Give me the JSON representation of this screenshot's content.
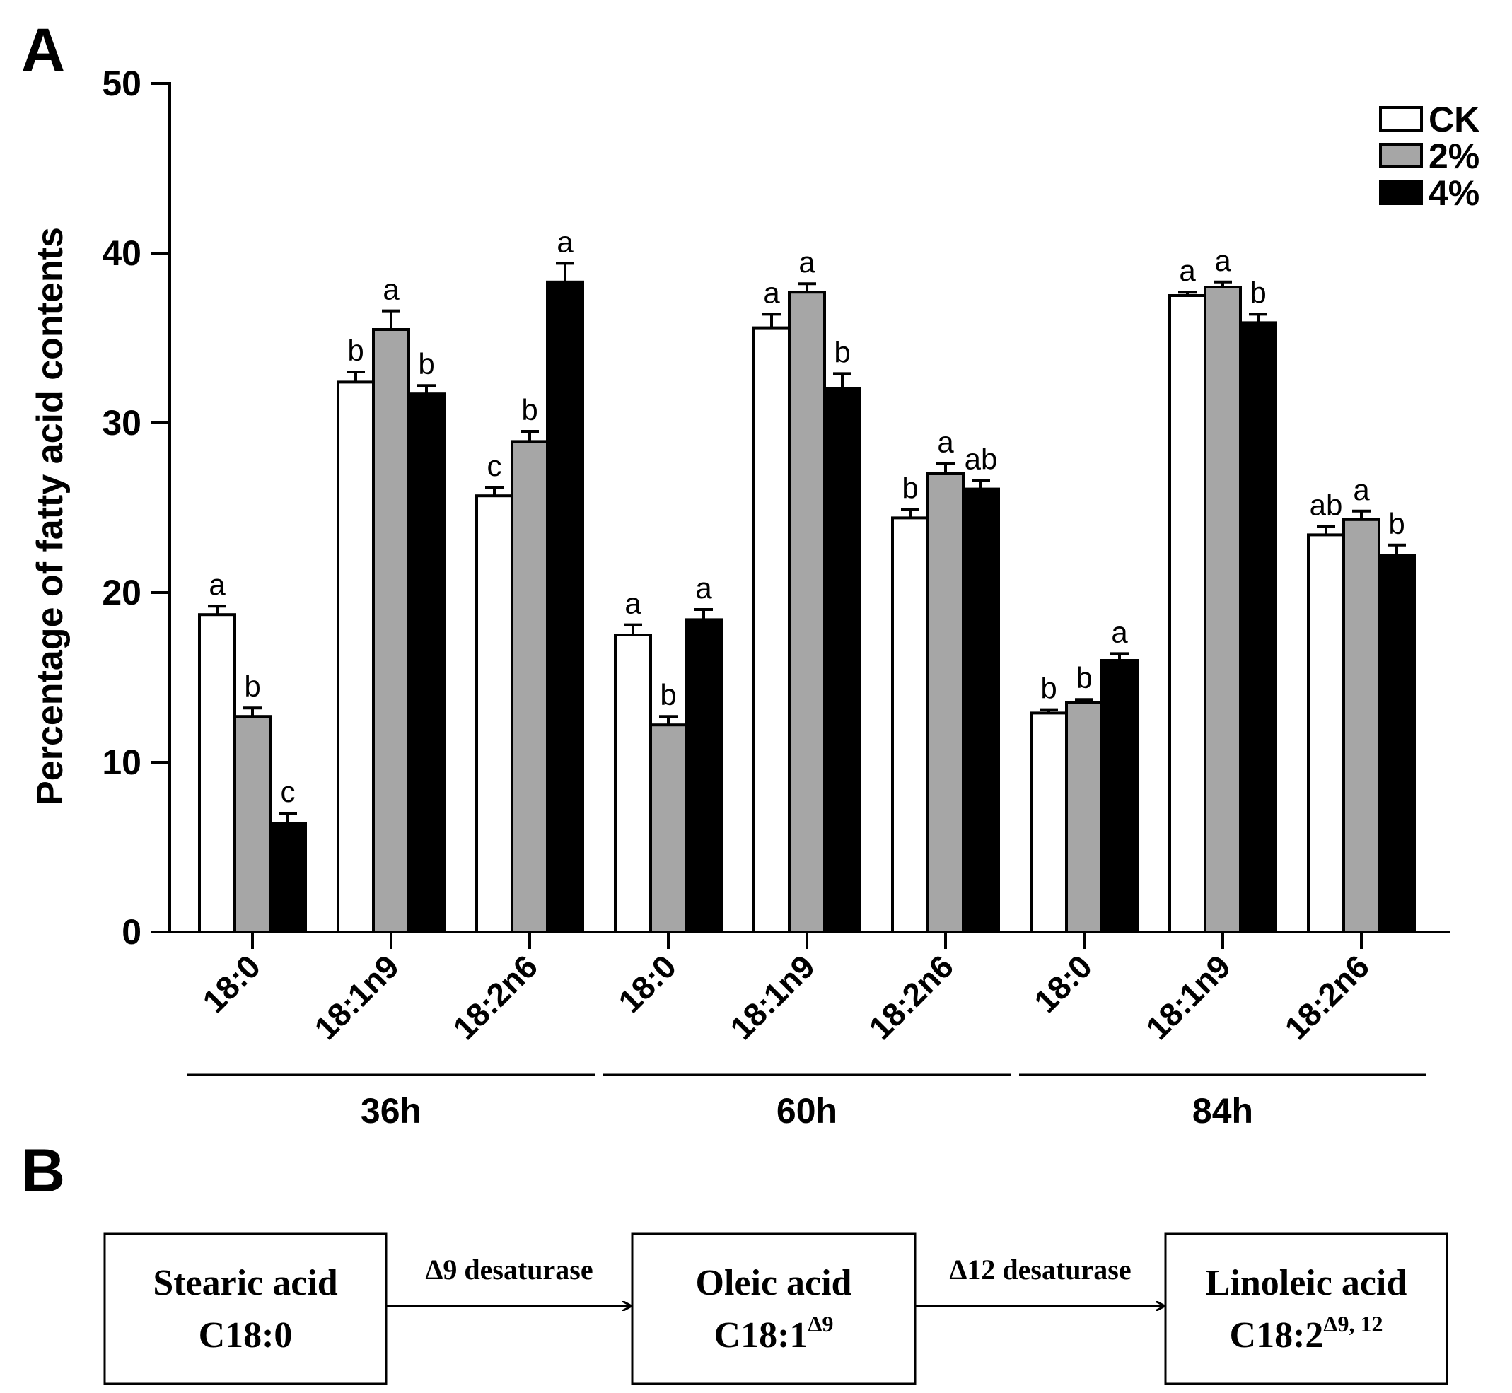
{
  "panel_a_label": "A",
  "panel_b_label": "B",
  "chart_data": {
    "type": "bar",
    "title": "",
    "ylabel": "Percentage of fatty acid contents",
    "xlabel": "",
    "ylim": [
      0,
      50
    ],
    "yticks": [
      0,
      10,
      20,
      30,
      40,
      50
    ],
    "categories": [
      "18:0",
      "18:1n9",
      "18:2n6",
      "18:0",
      "18:1n9",
      "18:2n6",
      "18:0",
      "18:1n9",
      "18:2n6"
    ],
    "groups": [
      {
        "label": "36h",
        "categories": [
          0,
          1,
          2
        ]
      },
      {
        "label": "60h",
        "categories": [
          3,
          4,
          5
        ]
      },
      {
        "label": "84h",
        "categories": [
          6,
          7,
          8
        ]
      }
    ],
    "legend_position": "top-right",
    "series": [
      {
        "name": "CK",
        "color": "#ffffff",
        "values": [
          18.7,
          32.4,
          25.7,
          17.5,
          35.6,
          24.4,
          12.9,
          37.5,
          23.4
        ],
        "errors": [
          0.5,
          0.6,
          0.5,
          0.6,
          0.8,
          0.5,
          0.2,
          0.2,
          0.5
        ],
        "letters": [
          "a",
          "b",
          "c",
          "a",
          "a",
          "b",
          "b",
          "a",
          "ab"
        ]
      },
      {
        "name": "2%",
        "color": "#a6a6a6",
        "values": [
          12.7,
          35.5,
          28.9,
          12.2,
          37.7,
          27.0,
          13.5,
          38.0,
          24.3
        ],
        "errors": [
          0.5,
          1.1,
          0.6,
          0.5,
          0.5,
          0.6,
          0.2,
          0.3,
          0.5
        ],
        "letters": [
          "b",
          "a",
          "b",
          "b",
          "a",
          "a",
          "b",
          "a",
          "a"
        ]
      },
      {
        "name": "4%",
        "color": "#000000",
        "values": [
          6.4,
          31.7,
          38.3,
          18.4,
          32.0,
          26.1,
          16.0,
          35.9,
          22.2
        ],
        "errors": [
          0.6,
          0.5,
          1.1,
          0.6,
          0.9,
          0.5,
          0.4,
          0.5,
          0.6
        ],
        "letters": [
          "c",
          "b",
          "a",
          "a",
          "b",
          "ab",
          "a",
          "b",
          "b"
        ]
      }
    ]
  },
  "pathway": {
    "nodes": [
      {
        "name": "Stearic acid",
        "formula": "C18:0",
        "superscript": ""
      },
      {
        "name": "Oleic acid",
        "formula": "C18:1",
        "superscript": "Δ9"
      },
      {
        "name": "Linoleic acid",
        "formula": "C18:2",
        "superscript": "Δ9, 12"
      }
    ],
    "arrows": [
      {
        "label": "Δ9 desaturase"
      },
      {
        "label": "Δ12 desaturase"
      }
    ]
  }
}
